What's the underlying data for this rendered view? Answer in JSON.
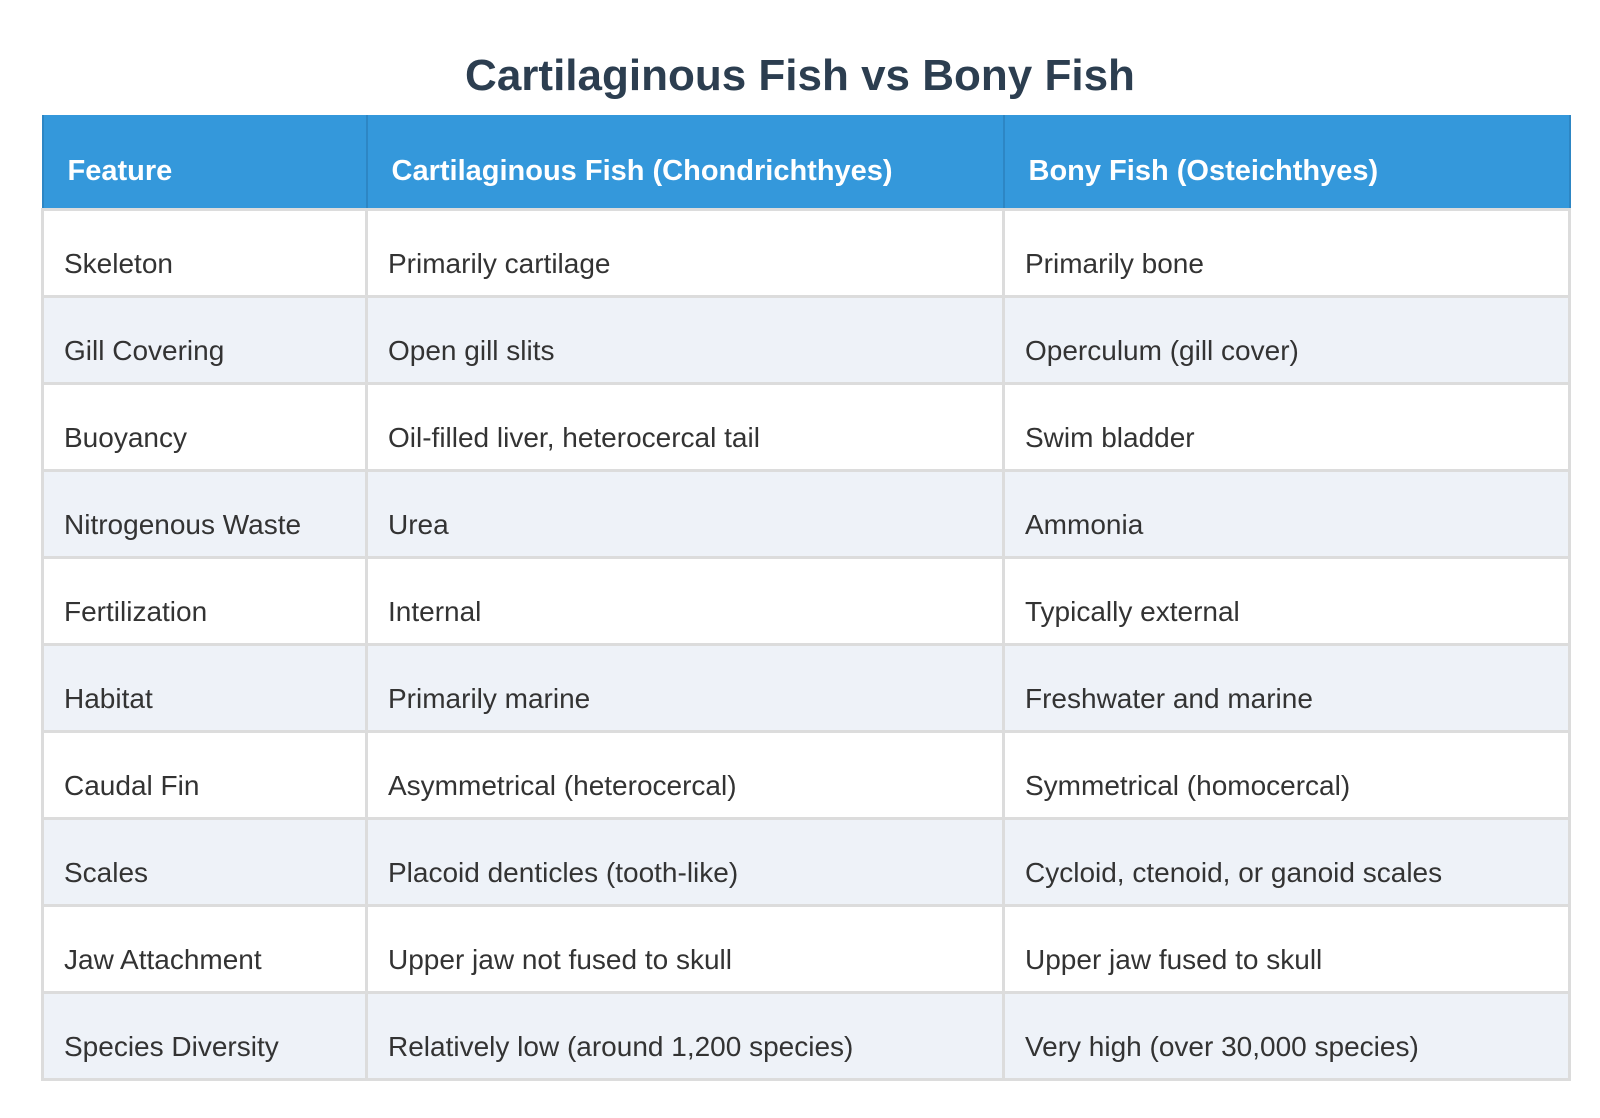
{
  "title": "Cartilaginous Fish vs Bony Fish",
  "table": {
    "headers": [
      "Feature",
      "Cartilaginous Fish (Chondrichthyes)",
      "Bony Fish (Osteichthyes)"
    ],
    "rows": [
      [
        "Skeleton",
        "Primarily cartilage",
        "Primarily bone"
      ],
      [
        "Gill Covering",
        "Open gill slits",
        "Operculum (gill cover)"
      ],
      [
        "Buoyancy",
        "Oil-filled liver, heterocercal tail",
        "Swim bladder"
      ],
      [
        "Nitrogenous Waste",
        "Urea",
        "Ammonia"
      ],
      [
        "Fertilization",
        "Internal",
        "Typically external"
      ],
      [
        "Habitat",
        "Primarily marine",
        "Freshwater and marine"
      ],
      [
        "Caudal Fin",
        "Asymmetrical (heterocercal)",
        "Symmetrical (homocercal)"
      ],
      [
        "Scales",
        "Placoid denticles (tooth-like)",
        "Cycloid, ctenoid, or ganoid scales"
      ],
      [
        "Jaw Attachment",
        "Upper jaw not fused to skull",
        "Upper jaw fused to skull"
      ],
      [
        "Species Diversity",
        "Relatively low (around 1,200 species)",
        "Very high (over 30,000 species)"
      ]
    ]
  },
  "colors": {
    "header_bg": "#3498db",
    "title_text": "#2c3e50",
    "row_alt_bg": "#eef2f8"
  }
}
